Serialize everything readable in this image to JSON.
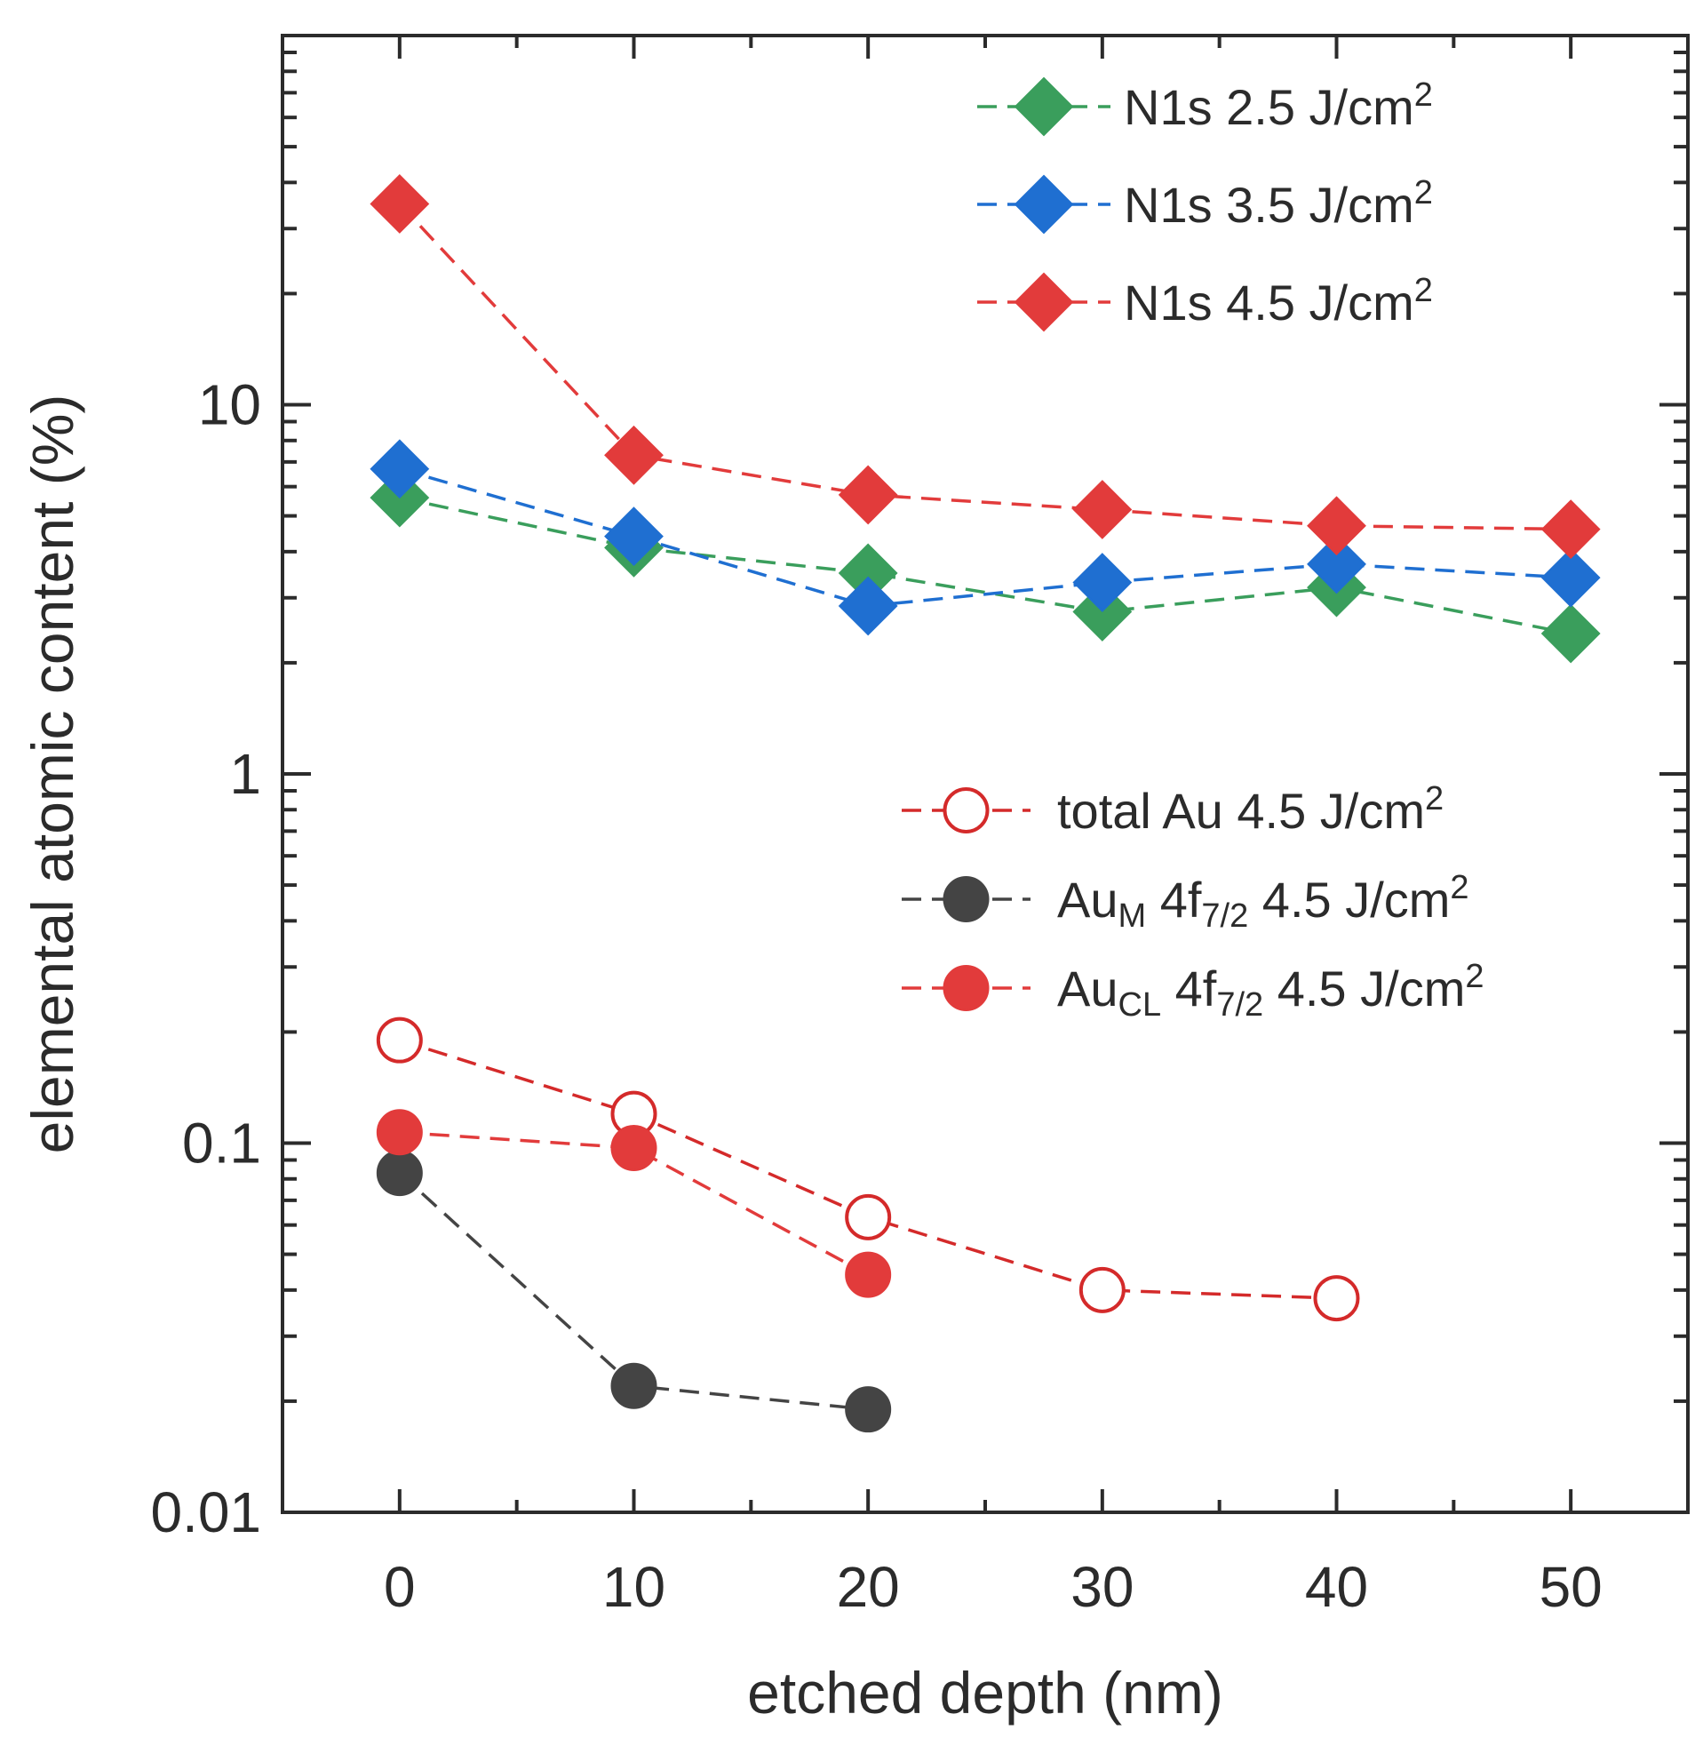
{
  "chart_data": {
    "type": "scatter",
    "xlabel": "etched depth (nm)",
    "ylabel": "elemental atomic content (%)",
    "xlim": [
      -5,
      55
    ],
    "ylim": [
      0.01,
      100
    ],
    "yscale": "log",
    "x_ticks": [
      "0",
      "10",
      "20",
      "30",
      "40",
      "50"
    ],
    "y_ticks": [
      "0.01",
      "0.1",
      "1",
      "10"
    ],
    "series": [
      {
        "key": "n25",
        "legend": "top",
        "name_parts": [
          [
            "N1s 2.5 J/cm",
            ""
          ],
          [
            "2",
            "sup"
          ]
        ],
        "marker": "diamond",
        "filled": true,
        "color": "#3a9e5c",
        "x": [
          0,
          10,
          20,
          30,
          40,
          50
        ],
        "y": [
          5.6,
          4.1,
          3.5,
          2.75,
          3.2,
          2.4
        ]
      },
      {
        "key": "n35",
        "legend": "top",
        "name_parts": [
          [
            "N1s 3.5 J/cm",
            ""
          ],
          [
            "2",
            "sup"
          ]
        ],
        "marker": "diamond",
        "filled": true,
        "color": "#1f6fd1",
        "x": [
          0,
          10,
          20,
          30,
          40,
          50
        ],
        "y": [
          6.7,
          4.4,
          2.85,
          3.3,
          3.7,
          3.4
        ]
      },
      {
        "key": "n45",
        "legend": "top",
        "name_parts": [
          [
            "N1s 4.5 J/cm",
            ""
          ],
          [
            "2",
            "sup"
          ]
        ],
        "marker": "diamond",
        "filled": true,
        "color": "#e23b3b",
        "x": [
          0,
          10,
          20,
          30,
          40,
          50
        ],
        "y": [
          35,
          7.3,
          5.7,
          5.2,
          4.7,
          4.6
        ]
      },
      {
        "key": "totalau",
        "legend": "bottom",
        "name_parts": [
          [
            "total Au 4.5 J/cm",
            ""
          ],
          [
            "2",
            "sup"
          ]
        ],
        "marker": "circle",
        "filled": false,
        "color": "#d42a2a",
        "x": [
          0,
          10,
          20,
          30,
          40
        ],
        "y": [
          0.19,
          0.12,
          0.063,
          0.04,
          0.038
        ]
      },
      {
        "key": "aum",
        "legend": "bottom",
        "name_parts": [
          [
            "Au",
            ""
          ],
          [
            "M",
            "sub"
          ],
          [
            " 4f",
            ""
          ],
          [
            "7/2",
            "sub"
          ],
          [
            " 4.5 J/cm",
            ""
          ],
          [
            "2",
            "sup"
          ]
        ],
        "marker": "circle",
        "filled": true,
        "color": "#444444",
        "x": [
          0,
          10,
          20
        ],
        "y": [
          0.083,
          0.022,
          0.019
        ]
      },
      {
        "key": "aucl",
        "legend": "bottom",
        "name_parts": [
          [
            "Au",
            ""
          ],
          [
            "CL",
            "sub"
          ],
          [
            " 4f",
            ""
          ],
          [
            "7/2",
            "sub"
          ],
          [
            " 4.5 J/cm",
            ""
          ],
          [
            "2",
            "sup"
          ]
        ],
        "marker": "circle",
        "filled": true,
        "color": "#e23b3b",
        "x": [
          0,
          10,
          20
        ],
        "y": [
          0.107,
          0.097,
          0.044
        ]
      }
    ]
  }
}
